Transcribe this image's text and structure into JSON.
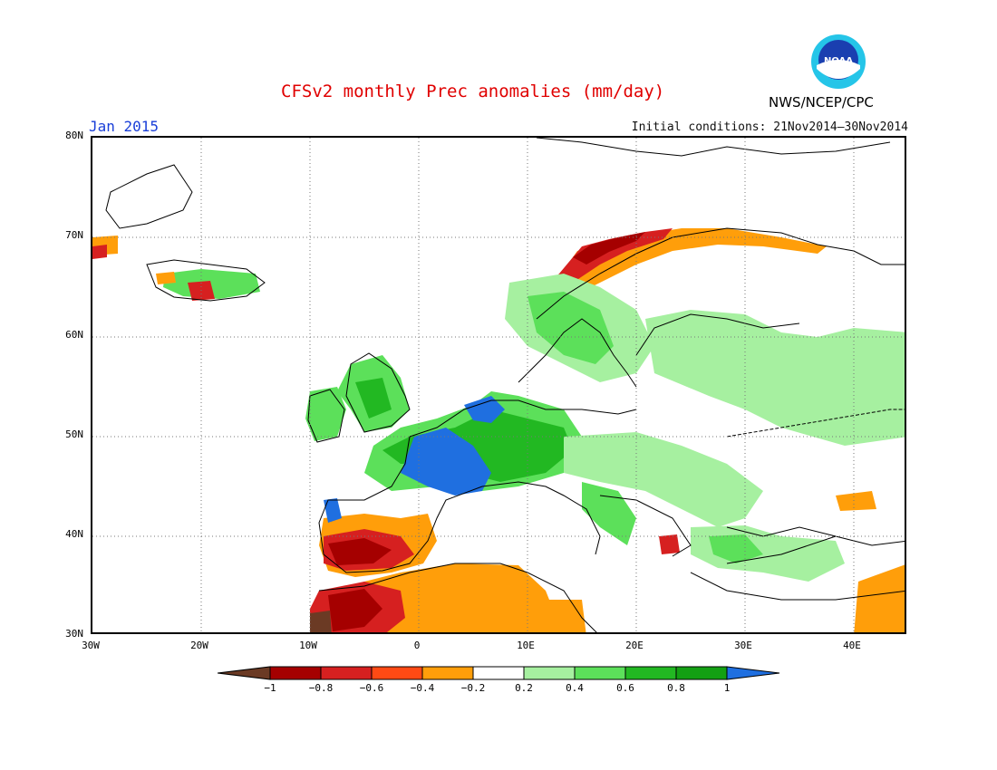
{
  "header": {
    "title": "CFSv2 monthly Prec anomalies (mm/day)",
    "month": "Jan 2015",
    "initial_conditions": "Initial conditions: 21Nov2014—30Nov2014",
    "agency": "NWS/NCEP/CPC",
    "logo_text": "NOAA",
    "logo_icon": "noaa-logo-icon"
  },
  "axes": {
    "lat_labels": [
      "80N",
      "70N",
      "60N",
      "50N",
      "40N",
      "30N"
    ],
    "lon_labels": [
      "30W",
      "20W",
      "10W",
      "0",
      "10E",
      "20E",
      "30E",
      "40E"
    ],
    "lat_range": [
      30,
      80
    ],
    "lon_range": [
      -30,
      45
    ],
    "grid": "dotted"
  },
  "colorbar": {
    "tick_labels": [
      "−1",
      "−0.8",
      "−0.6",
      "−0.4",
      "−0.2",
      "0.2",
      "0.4",
      "0.6",
      "0.8",
      "1"
    ],
    "colors": [
      "#6b3a24",
      "#a50000",
      "#d62020",
      "#ff4a14",
      "#ff9e0a",
      "#ffffff",
      "#a6f0a0",
      "#5ce05a",
      "#22b822",
      "#13a013",
      "#1f6fe0"
    ]
  }
}
